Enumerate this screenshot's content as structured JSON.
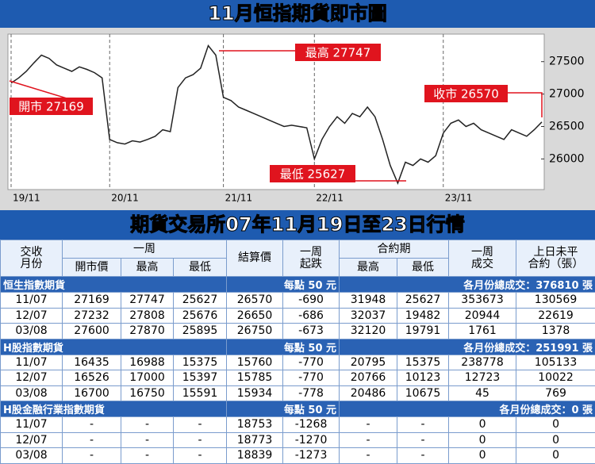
{
  "title": "11月恒指期貨即市圖",
  "chart_data": {
    "type": "line",
    "categories": [
      "19/11",
      null,
      null,
      null,
      null,
      null,
      null,
      null,
      null,
      null,
      null,
      null,
      null,
      "20/11",
      null,
      null,
      null,
      null,
      null,
      null,
      null,
      null,
      null,
      null,
      null,
      null,
      null,
      null,
      "21/11",
      null,
      null,
      null,
      null,
      null,
      null,
      null,
      null,
      null,
      null,
      null,
      "22/11",
      null,
      null,
      null,
      null,
      null,
      null,
      null,
      null,
      null,
      null,
      null,
      null,
      null,
      null,
      null,
      null,
      "23/11",
      null,
      null,
      null,
      null,
      null,
      null,
      null,
      null,
      null,
      null,
      null,
      null,
      null
    ],
    "series": [
      {
        "color": "#222222",
        "values": [
          27169,
          27250,
          27350,
          27480,
          27600,
          27550,
          27450,
          27400,
          27350,
          27420,
          27380,
          27330,
          27250,
          26300,
          26250,
          26230,
          26280,
          26260,
          26300,
          26350,
          26450,
          26420,
          27100,
          27250,
          27300,
          27400,
          27747,
          27600,
          26950,
          26900,
          26800,
          26750,
          26700,
          26650,
          26600,
          26550,
          26500,
          26520,
          26500,
          26480,
          26000,
          26300,
          26500,
          26650,
          26550,
          26700,
          26650,
          26800,
          26650,
          26300,
          25900,
          25627,
          25950,
          25900,
          26000,
          25950,
          26050,
          26400,
          26550,
          26600,
          26500,
          26550,
          26450,
          26400,
          26350,
          26300,
          26450,
          26400,
          26350,
          26450,
          26570
        ]
      }
    ],
    "ylim": [
      25540,
      27900
    ],
    "yticks": [
      26000,
      26500,
      27000,
      27500
    ],
    "grid": true,
    "annotations": [
      "開市 27169",
      "最高 27747",
      "收市 26570",
      "最低 25627"
    ]
  },
  "table": {
    "title": "期貨交易所07年11月19日至23日行情",
    "header_top": [
      "交收\n月份",
      "一周",
      "結算價",
      "一周\n起跌",
      "合約期",
      "一周\n成交",
      "上日未平\n合約（張）"
    ],
    "header_sub": [
      "開市價",
      "最高",
      "最低",
      "最高",
      "最低"
    ],
    "sections": [
      {
        "name": "恒生指數期貨",
        "unit": "每點 50 元",
        "volume": "各月份總成交：376810 張",
        "rows": [
          [
            "11/07",
            27169,
            27747,
            25627,
            26570,
            -690,
            31948,
            25627,
            353673,
            130569
          ],
          [
            "12/07",
            27232,
            27808,
            25676,
            26650,
            -686,
            32037,
            19482,
            20944,
            22619
          ],
          [
            "03/08",
            27600,
            27870,
            25895,
            26750,
            -673,
            32120,
            19791,
            1761,
            1378
          ]
        ]
      },
      {
        "name": "H股指數期貨",
        "unit": "每點 50 元",
        "volume": "各月份總成交：251991 張",
        "rows": [
          [
            "11/07",
            16435,
            16988,
            15375,
            15760,
            -770,
            20795,
            15375,
            238778,
            105133
          ],
          [
            "12/07",
            16526,
            17000,
            15397,
            15785,
            -770,
            20766,
            10123,
            12723,
            10022
          ],
          [
            "03/08",
            16700,
            16750,
            15591,
            15934,
            -778,
            20486,
            10675,
            45,
            769
          ]
        ]
      },
      {
        "name": "H股金融行業指數期貨",
        "unit": "每點 50 元",
        "volume": "各月份總成交：0 張",
        "rows": [
          [
            "11/07",
            "-",
            "-",
            "-",
            18753,
            -1268,
            "-",
            "-",
            0,
            0
          ],
          [
            "12/07",
            "-",
            "-",
            "-",
            18773,
            -1270,
            "-",
            "-",
            0,
            0
          ],
          [
            "03/08",
            "-",
            "-",
            "-",
            18839,
            -1273,
            "-",
            "-",
            0,
            0
          ]
        ]
      }
    ]
  }
}
